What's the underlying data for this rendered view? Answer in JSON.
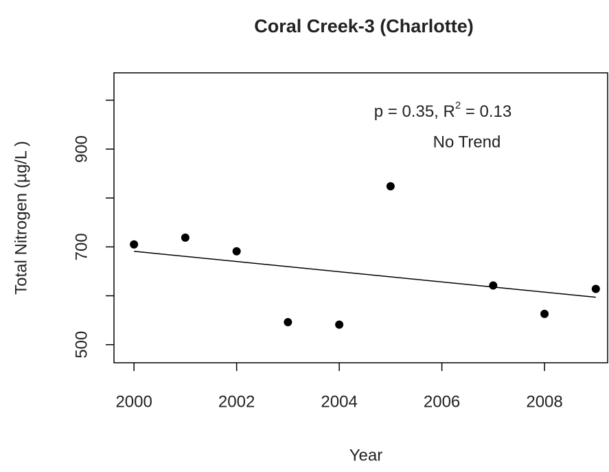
{
  "chart_data": {
    "type": "scatter",
    "title": "Coral Creek-3 (Charlotte)",
    "x_label": "Year",
    "y_label": "Total Nitrogen (µg/L )",
    "annotation": {
      "text": "p = 0.35, R",
      "superscript": "2",
      "rest": " = 0.13"
    },
    "trend_label": "No Trend",
    "x": [
      2000,
      2001,
      2002,
      2003,
      2004,
      2005,
      2007,
      2008,
      2009
    ],
    "series": [
      {
        "values": [
          705,
          719,
          691,
          546,
          541,
          824,
          621,
          563,
          614
        ],
        "color": "#000000"
      }
    ],
    "trend_line": {
      "x": [
        2000,
        2009
      ],
      "y": [
        691,
        597
      ]
    },
    "xlim": [
      1999.61,
      2009.23
    ],
    "ylim": [
      463,
      1056
    ],
    "xticks": [
      2000,
      2002,
      2004,
      2006,
      2008
    ],
    "yticks": [
      500,
      700,
      900
    ],
    "yticks_minor": [
      600,
      800,
      1000
    ]
  }
}
